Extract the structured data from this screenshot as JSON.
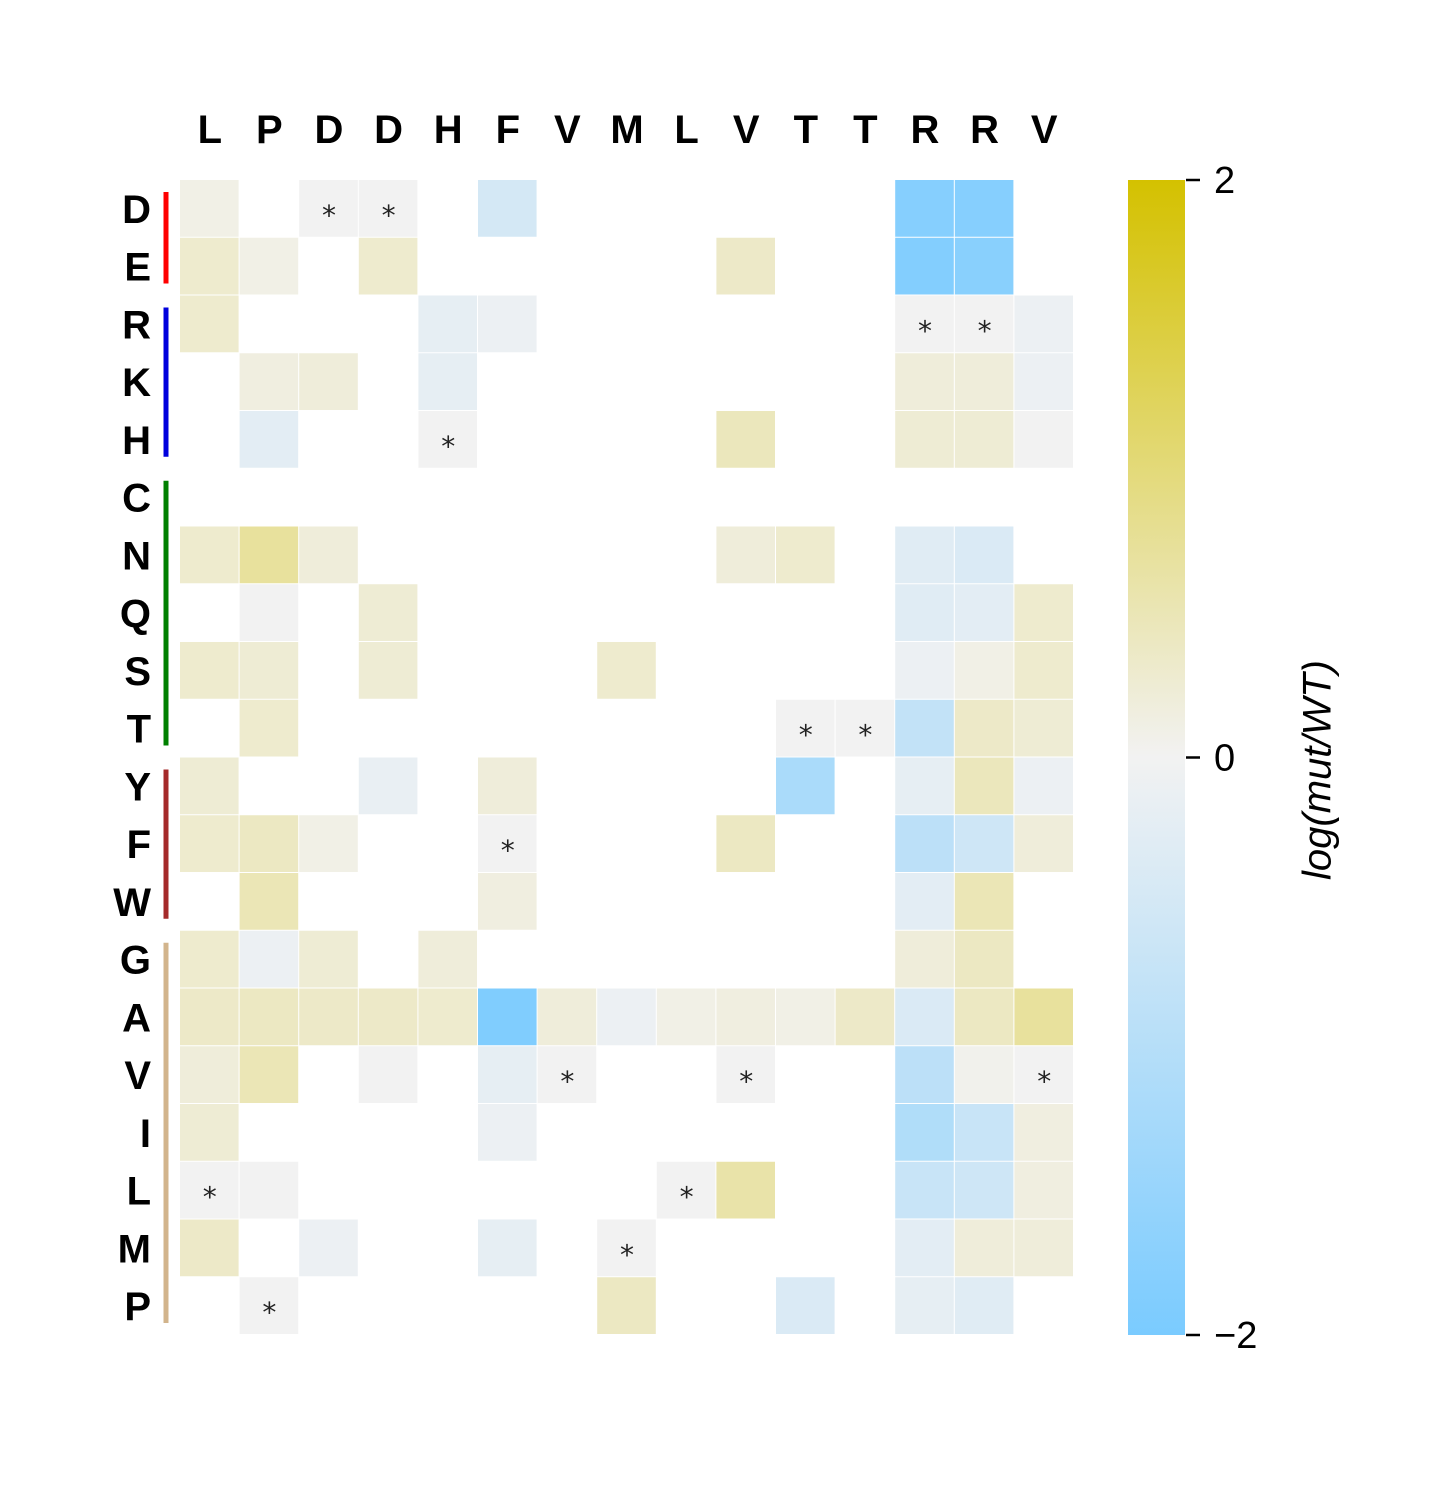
{
  "chart_data": {
    "type": "heatmap",
    "title": "",
    "xlabel": "",
    "ylabel": "",
    "columns": [
      "L",
      "P",
      "D",
      "D",
      "H",
      "F",
      "V",
      "M",
      "L",
      "V",
      "T",
      "T",
      "R",
      "R",
      "V"
    ],
    "rows": [
      "D",
      "E",
      "R",
      "K",
      "H",
      "C",
      "N",
      "Q",
      "S",
      "T",
      "Y",
      "F",
      "W",
      "G",
      "A",
      "V",
      "I",
      "L",
      "M",
      "P"
    ],
    "row_groups": [
      {
        "rows": [
          "D",
          "E"
        ],
        "color": "#ff0000"
      },
      {
        "rows": [
          "R",
          "K",
          "H"
        ],
        "color": "#0000dd"
      },
      {
        "rows": [
          "C",
          "N",
          "Q",
          "S",
          "T"
        ],
        "color": "#008000"
      },
      {
        "rows": [
          "Y",
          "F",
          "W"
        ],
        "color": "#a52a2a"
      },
      {
        "rows": [
          "G",
          "A",
          "V",
          "I",
          "L",
          "M",
          "P"
        ],
        "color": "#d2b48c"
      }
    ],
    "values": [
      [
        0.1,
        null,
        "wt",
        "wt",
        null,
        -0.5,
        null,
        null,
        null,
        null,
        null,
        null,
        -1.8,
        -1.8,
        null
      ],
      [
        0.3,
        0.1,
        null,
        0.3,
        null,
        null,
        null,
        null,
        null,
        0.35,
        null,
        null,
        -1.85,
        -1.75,
        null
      ],
      [
        0.3,
        null,
        null,
        null,
        -0.2,
        -0.1,
        null,
        null,
        null,
        null,
        null,
        null,
        "wt",
        "wt",
        -0.1
      ],
      [
        null,
        0.15,
        0.2,
        null,
        -0.2,
        null,
        null,
        null,
        null,
        null,
        null,
        null,
        0.2,
        0.2,
        -0.1
      ],
      [
        null,
        -0.25,
        null,
        null,
        "wt",
        null,
        null,
        null,
        null,
        0.45,
        null,
        null,
        0.25,
        0.25,
        0.0
      ],
      [
        null,
        null,
        null,
        null,
        null,
        null,
        null,
        null,
        null,
        null,
        null,
        null,
        null,
        null,
        null
      ],
      [
        0.3,
        0.7,
        0.2,
        null,
        null,
        null,
        null,
        null,
        null,
        0.2,
        0.3,
        null,
        -0.3,
        -0.4,
        null
      ],
      [
        null,
        0.0,
        null,
        0.25,
        null,
        null,
        null,
        null,
        null,
        null,
        null,
        null,
        -0.3,
        -0.25,
        0.3
      ],
      [
        0.3,
        0.25,
        null,
        0.25,
        null,
        null,
        null,
        0.3,
        null,
        null,
        null,
        null,
        -0.1,
        0.1,
        0.3
      ],
      [
        null,
        0.3,
        null,
        null,
        null,
        null,
        null,
        null,
        null,
        null,
        "wt",
        "wt",
        -0.8,
        0.35,
        0.25
      ],
      [
        0.25,
        null,
        null,
        -0.15,
        null,
        0.2,
        null,
        null,
        null,
        null,
        -1.2,
        null,
        -0.2,
        0.45,
        -0.1
      ],
      [
        0.3,
        0.4,
        0.1,
        null,
        null,
        "wt",
        null,
        null,
        null,
        0.4,
        null,
        null,
        -0.9,
        -0.6,
        0.2
      ],
      [
        null,
        0.5,
        null,
        null,
        null,
        0.15,
        null,
        null,
        null,
        null,
        null,
        null,
        -0.25,
        0.5,
        null
      ],
      [
        0.3,
        -0.1,
        0.25,
        null,
        0.2,
        null,
        null,
        null,
        null,
        null,
        null,
        null,
        0.2,
        0.4,
        null
      ],
      [
        0.35,
        0.4,
        0.35,
        0.35,
        0.3,
        -1.9,
        0.2,
        -0.1,
        0.1,
        0.15,
        0.1,
        0.35,
        -0.4,
        0.4,
        0.7
      ],
      [
        0.2,
        0.5,
        null,
        0.0,
        null,
        -0.2,
        "wt",
        null,
        null,
        "wt",
        null,
        null,
        -0.9,
        0.05,
        "wt"
      ],
      [
        0.25,
        null,
        null,
        null,
        null,
        -0.1,
        null,
        null,
        null,
        null,
        null,
        null,
        -1.1,
        -0.7,
        0.15
      ],
      [
        "wt",
        0.0,
        null,
        null,
        null,
        null,
        null,
        null,
        "wt",
        0.6,
        null,
        null,
        -0.7,
        -0.6,
        0.15
      ],
      [
        0.35,
        null,
        -0.1,
        null,
        null,
        -0.2,
        null,
        "wt",
        null,
        null,
        null,
        null,
        -0.25,
        0.2,
        0.2
      ],
      [
        null,
        "wt",
        null,
        null,
        null,
        null,
        null,
        0.4,
        null,
        null,
        -0.4,
        null,
        -0.2,
        -0.3,
        null
      ]
    ],
    "wt_marker": "*",
    "colorbar": {
      "label": "log(mut/WT)",
      "range": [
        -2,
        2
      ],
      "ticks": [
        "2",
        "0",
        "−2"
      ],
      "colors": {
        "low": "#7acbff",
        "mid": "#f2f2f2",
        "high": "#d4c100"
      }
    },
    "grid": false,
    "legend": "colorbar right"
  }
}
